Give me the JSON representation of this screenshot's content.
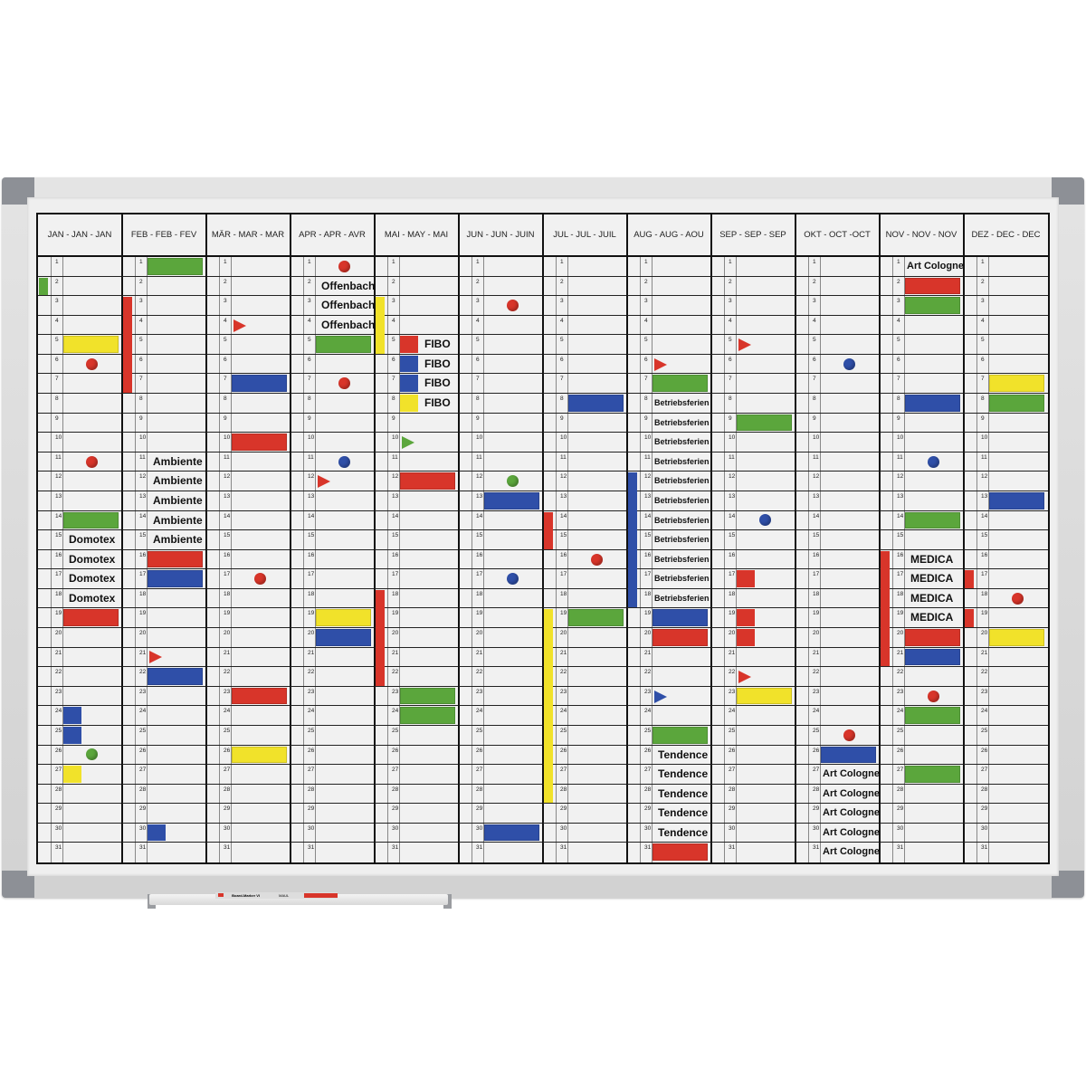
{
  "colors": {
    "red": "#d8352a",
    "blue": "#2f4fa8",
    "green": "#5ba63c",
    "yellow": "#f1e22a"
  },
  "months": [
    "JAN - JAN - JAN",
    "FEB - FEB - FEV",
    "MÄR - MAR - MAR",
    "APR - APR - AVR",
    "MAI - MAY - MAI",
    "JUN - JUN - JUIN",
    "JUL - JUL - JUIL",
    "AUG - AUG - AOU",
    "SEP - SEP - SEP",
    "OKT - OCT -OCT",
    "NOV - NOV - NOV",
    "DEZ - DEC - DEC"
  ],
  "days": [
    "1",
    "2",
    "3",
    "4",
    "5",
    "6",
    "7",
    "8",
    "9",
    "10",
    "11",
    "12",
    "13",
    "14",
    "15",
    "16",
    "17",
    "18",
    "19",
    "20",
    "21",
    "22",
    "23",
    "24",
    "25",
    "26",
    "27",
    "28",
    "29",
    "30",
    "31"
  ],
  "tray": {
    "marker_label": "Board-Marker VI",
    "brand": "MAUL"
  },
  "markers": [
    {
      "m": 0,
      "d": 2,
      "kind": "strip",
      "color": "green"
    },
    {
      "m": 0,
      "d": 5,
      "kind": "bar",
      "color": "yellow"
    },
    {
      "m": 0,
      "d": 6,
      "kind": "dot",
      "color": "red"
    },
    {
      "m": 0,
      "d": 11,
      "kind": "dot",
      "color": "red"
    },
    {
      "m": 0,
      "d": 14,
      "kind": "bar",
      "color": "green"
    },
    {
      "m": 0,
      "d": 15,
      "kind": "text",
      "label": "Domotex"
    },
    {
      "m": 0,
      "d": 16,
      "kind": "text",
      "label": "Domotex"
    },
    {
      "m": 0,
      "d": 17,
      "kind": "text",
      "label": "Domotex"
    },
    {
      "m": 0,
      "d": 18,
      "kind": "text",
      "label": "Domotex"
    },
    {
      "m": 0,
      "d": 19,
      "kind": "bar",
      "color": "red"
    },
    {
      "m": 0,
      "d": 24,
      "kind": "small",
      "color": "blue"
    },
    {
      "m": 0,
      "d": 25,
      "kind": "small",
      "color": "blue"
    },
    {
      "m": 0,
      "d": 26,
      "kind": "dot",
      "color": "green"
    },
    {
      "m": 0,
      "d": 27,
      "kind": "small",
      "color": "yellow"
    },
    {
      "m": 1,
      "d": 1,
      "kind": "bar",
      "color": "green"
    },
    {
      "m": 1,
      "d": 3,
      "to": 7,
      "kind": "strip",
      "color": "red"
    },
    {
      "m": 1,
      "d": 11,
      "kind": "text",
      "label": "Ambiente"
    },
    {
      "m": 1,
      "d": 12,
      "kind": "text",
      "label": "Ambiente"
    },
    {
      "m": 1,
      "d": 13,
      "kind": "text",
      "label": "Ambiente"
    },
    {
      "m": 1,
      "d": 14,
      "kind": "text",
      "label": "Ambiente"
    },
    {
      "m": 1,
      "d": 15,
      "kind": "text",
      "label": "Ambiente"
    },
    {
      "m": 1,
      "d": 16,
      "kind": "bar",
      "color": "red"
    },
    {
      "m": 1,
      "d": 17,
      "kind": "bar",
      "color": "blue"
    },
    {
      "m": 1,
      "d": 21,
      "kind": "triangle",
      "color": "red"
    },
    {
      "m": 1,
      "d": 22,
      "kind": "bar",
      "color": "blue"
    },
    {
      "m": 1,
      "d": 30,
      "kind": "small",
      "color": "blue"
    },
    {
      "m": 2,
      "d": 4,
      "kind": "triangle",
      "color": "red"
    },
    {
      "m": 2,
      "d": 7,
      "kind": "bar",
      "color": "blue"
    },
    {
      "m": 2,
      "d": 10,
      "kind": "bar",
      "color": "red"
    },
    {
      "m": 2,
      "d": 17,
      "kind": "dot",
      "color": "red"
    },
    {
      "m": 2,
      "d": 23,
      "kind": "bar",
      "color": "red"
    },
    {
      "m": 2,
      "d": 26,
      "kind": "bar",
      "color": "yellow"
    },
    {
      "m": 3,
      "d": 1,
      "kind": "dot",
      "color": "red"
    },
    {
      "m": 3,
      "d": 2,
      "kind": "text",
      "label": "Offenbach"
    },
    {
      "m": 3,
      "d": 3,
      "kind": "text",
      "label": "Offenbach"
    },
    {
      "m": 3,
      "d": 4,
      "kind": "text",
      "label": "Offenbach"
    },
    {
      "m": 3,
      "d": 5,
      "kind": "bar",
      "color": "green"
    },
    {
      "m": 3,
      "d": 7,
      "kind": "dot",
      "color": "red"
    },
    {
      "m": 3,
      "d": 11,
      "kind": "dot",
      "color": "blue"
    },
    {
      "m": 3,
      "d": 12,
      "kind": "triangle",
      "color": "red"
    },
    {
      "m": 3,
      "d": 19,
      "kind": "bar",
      "color": "yellow"
    },
    {
      "m": 3,
      "d": 20,
      "kind": "bar",
      "color": "blue"
    },
    {
      "m": 4,
      "d": 3,
      "to": 5,
      "kind": "strip",
      "color": "yellow"
    },
    {
      "m": 4,
      "d": 5,
      "kind": "small",
      "color": "red"
    },
    {
      "m": 4,
      "d": 6,
      "kind": "small",
      "color": "blue"
    },
    {
      "m": 4,
      "d": 7,
      "kind": "small",
      "color": "blue"
    },
    {
      "m": 4,
      "d": 8,
      "kind": "small",
      "color": "yellow"
    },
    {
      "m": 4,
      "d": 5,
      "kind": "text",
      "label": "FIBO",
      "shift": true
    },
    {
      "m": 4,
      "d": 6,
      "kind": "text",
      "label": "FIBO",
      "shift": true
    },
    {
      "m": 4,
      "d": 7,
      "kind": "text",
      "label": "FIBO",
      "shift": true
    },
    {
      "m": 4,
      "d": 8,
      "kind": "text",
      "label": "FIBO",
      "shift": true
    },
    {
      "m": 4,
      "d": 10,
      "kind": "triangle",
      "color": "green"
    },
    {
      "m": 4,
      "d": 12,
      "kind": "bar",
      "color": "red"
    },
    {
      "m": 4,
      "d": 18,
      "to": 22,
      "kind": "strip",
      "color": "red"
    },
    {
      "m": 4,
      "d": 23,
      "kind": "bar",
      "color": "green"
    },
    {
      "m": 4,
      "d": 24,
      "kind": "bar",
      "color": "green"
    },
    {
      "m": 5,
      "d": 3,
      "kind": "dot",
      "color": "red"
    },
    {
      "m": 5,
      "d": 12,
      "kind": "dot",
      "color": "green"
    },
    {
      "m": 5,
      "d": 13,
      "kind": "bar",
      "color": "blue"
    },
    {
      "m": 5,
      "d": 17,
      "kind": "dot",
      "color": "blue"
    },
    {
      "m": 5,
      "d": 30,
      "kind": "bar",
      "color": "blue"
    },
    {
      "m": 6,
      "d": 8,
      "kind": "bar",
      "color": "blue"
    },
    {
      "m": 6,
      "d": 14,
      "to": 15,
      "kind": "strip",
      "color": "red"
    },
    {
      "m": 6,
      "d": 16,
      "kind": "dot",
      "color": "red"
    },
    {
      "m": 6,
      "d": 19,
      "to": 28,
      "kind": "strip",
      "color": "yellow"
    },
    {
      "m": 6,
      "d": 19,
      "kind": "bar",
      "color": "green"
    },
    {
      "m": 7,
      "d": 6,
      "kind": "triangle",
      "color": "red"
    },
    {
      "m": 7,
      "d": 7,
      "kind": "bar",
      "color": "green"
    },
    {
      "m": 7,
      "d": 8,
      "kind": "text",
      "label": "Betriebsferien",
      "small": true
    },
    {
      "m": 7,
      "d": 9,
      "kind": "text",
      "label": "Betriebsferien",
      "small": true
    },
    {
      "m": 7,
      "d": 10,
      "kind": "text",
      "label": "Betriebsferien",
      "small": true
    },
    {
      "m": 7,
      "d": 11,
      "kind": "text",
      "label": "Betriebsferien",
      "small": true
    },
    {
      "m": 7,
      "d": 12,
      "kind": "text",
      "label": "Betriebsferien",
      "small": true
    },
    {
      "m": 7,
      "d": 13,
      "kind": "text",
      "label": "Betriebsferien",
      "small": true
    },
    {
      "m": 7,
      "d": 14,
      "kind": "text",
      "label": "Betriebsferien",
      "small": true
    },
    {
      "m": 7,
      "d": 15,
      "kind": "text",
      "label": "Betriebsferien",
      "small": true
    },
    {
      "m": 7,
      "d": 16,
      "kind": "text",
      "label": "Betriebsferien",
      "small": true
    },
    {
      "m": 7,
      "d": 17,
      "kind": "text",
      "label": "Betriebsferien",
      "small": true
    },
    {
      "m": 7,
      "d": 18,
      "kind": "text",
      "label": "Betriebsferien",
      "small": true
    },
    {
      "m": 7,
      "d": 12,
      "to": 18,
      "kind": "strip",
      "color": "blue"
    },
    {
      "m": 7,
      "d": 19,
      "kind": "bar",
      "color": "blue"
    },
    {
      "m": 7,
      "d": 20,
      "kind": "bar",
      "color": "red"
    },
    {
      "m": 7,
      "d": 23,
      "kind": "triangle",
      "color": "blue"
    },
    {
      "m": 7,
      "d": 25,
      "kind": "bar",
      "color": "green"
    },
    {
      "m": 7,
      "d": 26,
      "kind": "text",
      "label": "Tendence"
    },
    {
      "m": 7,
      "d": 27,
      "kind": "text",
      "label": "Tendence"
    },
    {
      "m": 7,
      "d": 28,
      "kind": "text",
      "label": "Tendence"
    },
    {
      "m": 7,
      "d": 29,
      "kind": "text",
      "label": "Tendence"
    },
    {
      "m": 7,
      "d": 30,
      "kind": "text",
      "label": "Tendence"
    },
    {
      "m": 7,
      "d": 31,
      "kind": "bar",
      "color": "red"
    },
    {
      "m": 8,
      "d": 5,
      "kind": "triangle",
      "color": "red"
    },
    {
      "m": 8,
      "d": 9,
      "kind": "bar",
      "color": "green"
    },
    {
      "m": 8,
      "d": 14,
      "kind": "dot",
      "color": "blue"
    },
    {
      "m": 8,
      "d": 17,
      "kind": "small",
      "color": "red"
    },
    {
      "m": 8,
      "d": 19,
      "kind": "small",
      "color": "red"
    },
    {
      "m": 8,
      "d": 20,
      "kind": "small",
      "color": "red"
    },
    {
      "m": 8,
      "d": 22,
      "kind": "triangle",
      "color": "red"
    },
    {
      "m": 8,
      "d": 23,
      "kind": "bar",
      "color": "yellow"
    },
    {
      "m": 9,
      "d": 6,
      "kind": "dot",
      "color": "blue"
    },
    {
      "m": 9,
      "d": 25,
      "kind": "dot",
      "color": "red"
    },
    {
      "m": 9,
      "d": 26,
      "kind": "bar",
      "color": "blue"
    },
    {
      "m": 9,
      "d": 27,
      "kind": "text",
      "label": "Art Cologne",
      "mid": true
    },
    {
      "m": 9,
      "d": 28,
      "kind": "text",
      "label": "Art Cologne",
      "mid": true
    },
    {
      "m": 9,
      "d": 29,
      "kind": "text",
      "label": "Art Cologne",
      "mid": true
    },
    {
      "m": 9,
      "d": 30,
      "kind": "text",
      "label": "Art Cologne",
      "mid": true
    },
    {
      "m": 9,
      "d": 31,
      "kind": "text",
      "label": "Art Cologne",
      "mid": true
    },
    {
      "m": 10,
      "d": 1,
      "kind": "text",
      "label": "Art Cologne",
      "mid": true
    },
    {
      "m": 10,
      "d": 2,
      "kind": "bar",
      "color": "red"
    },
    {
      "m": 10,
      "d": 3,
      "kind": "bar",
      "color": "green"
    },
    {
      "m": 10,
      "d": 8,
      "kind": "bar",
      "color": "blue"
    },
    {
      "m": 10,
      "d": 11,
      "kind": "dot",
      "color": "blue"
    },
    {
      "m": 10,
      "d": 14,
      "kind": "bar",
      "color": "green"
    },
    {
      "m": 10,
      "d": 16,
      "to": 21,
      "kind": "strip",
      "color": "red"
    },
    {
      "m": 10,
      "d": 16,
      "kind": "text",
      "label": "MEDICA"
    },
    {
      "m": 10,
      "d": 17,
      "kind": "text",
      "label": "MEDICA"
    },
    {
      "m": 10,
      "d": 18,
      "kind": "text",
      "label": "MEDICA"
    },
    {
      "m": 10,
      "d": 19,
      "kind": "text",
      "label": "MEDICA"
    },
    {
      "m": 10,
      "d": 20,
      "kind": "bar",
      "color": "red"
    },
    {
      "m": 10,
      "d": 21,
      "kind": "bar",
      "color": "blue"
    },
    {
      "m": 10,
      "d": 23,
      "kind": "dot",
      "color": "red"
    },
    {
      "m": 10,
      "d": 24,
      "kind": "bar",
      "color": "green"
    },
    {
      "m": 10,
      "d": 27,
      "kind": "bar",
      "color": "green"
    },
    {
      "m": 11,
      "d": 7,
      "kind": "bar",
      "color": "yellow"
    },
    {
      "m": 11,
      "d": 8,
      "kind": "bar",
      "color": "green"
    },
    {
      "m": 11,
      "d": 13,
      "kind": "bar",
      "color": "blue"
    },
    {
      "m": 11,
      "d": 17,
      "kind": "strip",
      "color": "red"
    },
    {
      "m": 11,
      "d": 18,
      "kind": "dot",
      "color": "red"
    },
    {
      "m": 11,
      "d": 19,
      "kind": "strip",
      "color": "red"
    },
    {
      "m": 11,
      "d": 20,
      "kind": "bar",
      "color": "yellow"
    }
  ]
}
